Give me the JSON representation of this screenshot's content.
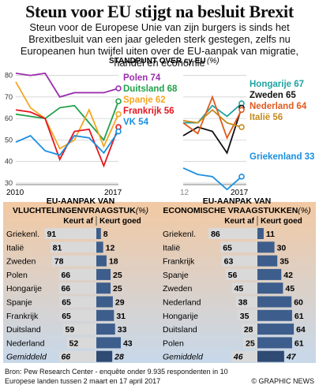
{
  "header": {
    "title": "Steun voor EU stijgt na besluit Brexit",
    "subtitle": "Steun voor de Europese Unie van zijn burgers is sinds het Brexitbesluit van een jaar geleden sterk gestegen, zelfs nu Europeanen hun twijfel uiten over de EU-aanpak van migratie, handel en economie"
  },
  "chart_data": [
    {
      "type": "line",
      "title": "STANDPUNT OVER cy EU",
      "title_parts": {
        "main": "STANDPUNT OVER cy EU",
        "unit": "(%)"
      },
      "x_start": "2010",
      "x_end": "2017",
      "ylim": [
        30,
        85
      ],
      "yticks": [
        30,
        40,
        50,
        60,
        70,
        80
      ],
      "grid": true,
      "series": [
        {
          "name": "Polen",
          "color": "#9b2fae",
          "values": [
            81,
            80,
            81,
            70,
            72,
            72,
            72,
            74
          ]
        },
        {
          "name": "Duitsland",
          "color": "#22a14a",
          "values": [
            62,
            61,
            60,
            65,
            66,
            58,
            50,
            68
          ]
        },
        {
          "name": "Spanje",
          "color": "#f5a623",
          "values": [
            77,
            65,
            60,
            46,
            50,
            64,
            47,
            62
          ]
        },
        {
          "name": "Frankrijk",
          "color": "#e3161f",
          "values": [
            64,
            63,
            60,
            41,
            54,
            55,
            38,
            56
          ]
        },
        {
          "name": "VK",
          "color": "#1b8fe0",
          "values": [
            49,
            52,
            45,
            43,
            52,
            51,
            44,
            54
          ]
        }
      ]
    },
    {
      "type": "line",
      "x_start": "12",
      "x_end": "2017",
      "ylim": [
        30,
        85
      ],
      "grid": true,
      "series": [
        {
          "name": "Hongarije",
          "color": "#1fa3a3",
          "values": [
            58,
            58,
            66,
            61,
            67
          ]
        },
        {
          "name": "Zweden",
          "color": "#111111",
          "values": [
            52,
            56,
            54,
            44,
            65
          ]
        },
        {
          "name": "Nederland",
          "color": "#e05a1e",
          "values": [
            58,
            53,
            70,
            51,
            64
          ]
        },
        {
          "name": "Italië",
          "color": "#c58a1c",
          "values": [
            59,
            58,
            64,
            58,
            56
          ]
        },
        {
          "name": "Griekenland",
          "color": "#1b8fe0",
          "values": [
            37,
            34,
            33,
            27,
            33
          ]
        }
      ]
    },
    {
      "type": "bar",
      "title": "EU-AANPAK VAN VLUCHTELINGENVRAAGSTUK",
      "title_lines": [
        "EU-AANPAK VAN",
        "VLUCHTELINGENVRAAGSTUK"
      ],
      "unit": "(%)",
      "series_names": [
        "Keurt af",
        "Keurt goed"
      ],
      "categories": [
        "Griekenl.",
        "Italië",
        "Zweden",
        "Polen",
        "Hongarije",
        "Spanje",
        "Frankrijk",
        "Duitsland",
        "Nederland",
        "Gemiddeld"
      ],
      "keurt_af": [
        91,
        81,
        78,
        66,
        66,
        65,
        65,
        59,
        52,
        66
      ],
      "keurt_goed": [
        8,
        12,
        18,
        25,
        25,
        29,
        31,
        33,
        43,
        28
      ]
    },
    {
      "type": "bar",
      "title": "EU-AANPAK VAN ECONOMISCHE VRAAGSTUKKEN",
      "title_lines": [
        "EU-AANPAK VAN",
        "ECONOMISCHE VRAAGSTUKKEN"
      ],
      "unit": "(%)",
      "series_names": [
        "Keurt af",
        "Keurt goed"
      ],
      "categories": [
        "Griekenl.",
        "Italië",
        "Frankrijk",
        "Spanje",
        "Zweden",
        "Nederland",
        "Hongarije",
        "Duitsland",
        "Polen",
        "Gemiddeld"
      ],
      "keurt_af": [
        86,
        65,
        63,
        56,
        45,
        38,
        35,
        28,
        25,
        46
      ],
      "keurt_goed": [
        11,
        30,
        35,
        42,
        45,
        60,
        61,
        64,
        61,
        47
      ]
    }
  ],
  "footer": {
    "source": "Bron: Pew Research Center - enquête onder 9.935 respondenten in 10 Europese landen tussen 2 maart en 17 april 2017",
    "credit": "© GRAPHIC NEWS"
  },
  "colors": {
    "bar_af": "#d9d9d9",
    "bar_goed": "#3d5e8c",
    "bar_goed_dark": "#2f4a73",
    "panel_gradient_top": "#f2c9a3",
    "panel_gradient_bottom": "#c7d8ea"
  }
}
